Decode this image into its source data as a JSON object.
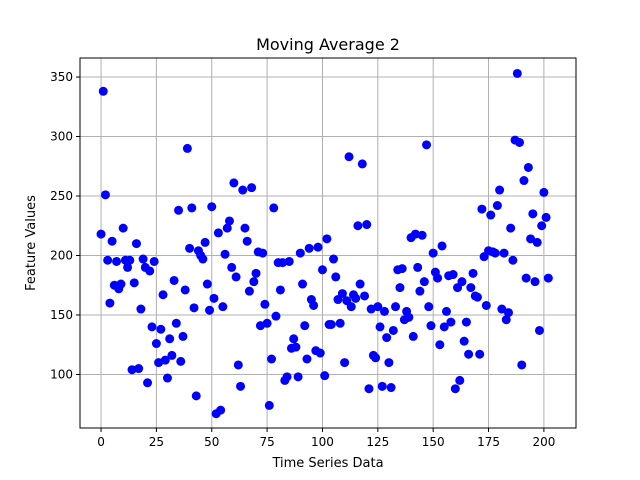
{
  "chart_data": {
    "type": "scatter",
    "title": "Moving Average 2",
    "xlabel": "Time Series Data",
    "ylabel": "Feature Values",
    "xlim": [
      -9.5,
      214.5
    ],
    "ylim": [
      55,
      366
    ],
    "xticks": [
      0,
      25,
      50,
      75,
      100,
      125,
      150,
      175,
      200
    ],
    "yticks": [
      100,
      150,
      200,
      250,
      300,
      350
    ],
    "grid": true,
    "marker_color": "#0000ff",
    "points": [
      [
        0,
        218
      ],
      [
        1,
        338
      ],
      [
        2,
        251
      ],
      [
        3,
        196
      ],
      [
        4,
        160
      ],
      [
        5,
        212
      ],
      [
        6,
        175
      ],
      [
        7,
        195
      ],
      [
        8,
        172
      ],
      [
        9,
        176
      ],
      [
        10,
        223
      ],
      [
        11,
        196
      ],
      [
        12,
        190
      ],
      [
        13,
        196
      ],
      [
        14,
        104
      ],
      [
        15,
        177
      ],
      [
        16,
        210
      ],
      [
        17,
        105
      ],
      [
        18,
        155
      ],
      [
        19,
        197
      ],
      [
        20,
        190
      ],
      [
        21,
        93
      ],
      [
        22,
        187
      ],
      [
        23,
        140
      ],
      [
        24,
        195
      ],
      [
        25,
        126
      ],
      [
        26,
        110
      ],
      [
        27,
        138
      ],
      [
        28,
        167
      ],
      [
        29,
        112
      ],
      [
        30,
        97
      ],
      [
        31,
        130
      ],
      [
        32,
        116
      ],
      [
        33,
        179
      ],
      [
        34,
        143
      ],
      [
        35,
        238
      ],
      [
        36,
        111
      ],
      [
        37,
        132
      ],
      [
        38,
        171
      ],
      [
        39,
        290
      ],
      [
        40,
        206
      ],
      [
        41,
        240
      ],
      [
        42,
        156
      ],
      [
        43,
        82
      ],
      [
        44,
        204
      ],
      [
        45,
        200
      ],
      [
        46,
        197
      ],
      [
        47,
        211
      ],
      [
        48,
        176
      ],
      [
        49,
        154
      ],
      [
        50,
        241
      ],
      [
        51,
        164
      ],
      [
        52,
        67
      ],
      [
        53,
        219
      ],
      [
        54,
        70
      ],
      [
        55,
        157
      ],
      [
        56,
        201
      ],
      [
        57,
        223
      ],
      [
        58,
        229
      ],
      [
        59,
        190
      ],
      [
        60,
        261
      ],
      [
        61,
        182
      ],
      [
        62,
        108
      ],
      [
        63,
        90
      ],
      [
        64,
        255
      ],
      [
        65,
        223
      ],
      [
        66,
        212
      ],
      [
        67,
        170
      ],
      [
        68,
        257
      ],
      [
        69,
        178
      ],
      [
        70,
        185
      ],
      [
        71,
        203
      ],
      [
        72,
        141
      ],
      [
        73,
        202
      ],
      [
        74,
        159
      ],
      [
        75,
        143
      ],
      [
        76,
        74
      ],
      [
        77,
        113
      ],
      [
        78,
        240
      ],
      [
        79,
        149
      ],
      [
        80,
        194
      ],
      [
        81,
        171
      ],
      [
        82,
        194
      ],
      [
        83,
        95
      ],
      [
        84,
        98
      ],
      [
        85,
        195
      ],
      [
        86,
        122
      ],
      [
        87,
        130
      ],
      [
        88,
        123
      ],
      [
        89,
        98
      ],
      [
        90,
        202
      ],
      [
        91,
        176
      ],
      [
        92,
        141
      ],
      [
        93,
        113
      ],
      [
        94,
        206
      ],
      [
        95,
        163
      ],
      [
        96,
        158
      ],
      [
        97,
        120
      ],
      [
        98,
        207
      ],
      [
        99,
        118
      ],
      [
        100,
        188
      ],
      [
        101,
        99
      ],
      [
        102,
        214
      ],
      [
        103,
        142
      ],
      [
        104,
        142
      ],
      [
        105,
        197
      ],
      [
        106,
        182
      ],
      [
        107,
        163
      ],
      [
        108,
        143
      ],
      [
        109,
        168
      ],
      [
        110,
        110
      ],
      [
        111,
        162
      ],
      [
        112,
        283
      ],
      [
        113,
        157
      ],
      [
        114,
        167
      ],
      [
        115,
        164
      ],
      [
        116,
        225
      ],
      [
        117,
        176
      ],
      [
        118,
        277
      ],
      [
        119,
        166
      ],
      [
        120,
        226
      ],
      [
        121,
        88
      ],
      [
        122,
        155
      ],
      [
        123,
        116
      ],
      [
        124,
        114
      ],
      [
        125,
        157
      ],
      [
        126,
        140
      ],
      [
        127,
        90
      ],
      [
        128,
        153
      ],
      [
        129,
        131
      ],
      [
        130,
        110
      ],
      [
        131,
        89
      ],
      [
        132,
        137
      ],
      [
        133,
        157
      ],
      [
        134,
        188
      ],
      [
        135,
        173
      ],
      [
        136,
        189
      ],
      [
        137,
        146
      ],
      [
        138,
        153
      ],
      [
        139,
        148
      ],
      [
        140,
        215
      ],
      [
        141,
        132
      ],
      [
        142,
        218
      ],
      [
        143,
        190
      ],
      [
        144,
        170
      ],
      [
        145,
        217
      ],
      [
        146,
        178
      ],
      [
        147,
        293
      ],
      [
        148,
        157
      ],
      [
        149,
        141
      ],
      [
        150,
        202
      ],
      [
        151,
        186
      ],
      [
        152,
        181
      ],
      [
        153,
        125
      ],
      [
        154,
        208
      ],
      [
        155,
        140
      ],
      [
        156,
        153
      ],
      [
        157,
        183
      ],
      [
        158,
        144
      ],
      [
        159,
        184
      ],
      [
        160,
        88
      ],
      [
        161,
        173
      ],
      [
        162,
        95
      ],
      [
        163,
        178
      ],
      [
        164,
        128
      ],
      [
        165,
        144
      ],
      [
        166,
        117
      ],
      [
        167,
        173
      ],
      [
        168,
        185
      ],
      [
        169,
        166
      ],
      [
        170,
        165
      ],
      [
        171,
        117
      ],
      [
        172,
        239
      ],
      [
        173,
        199
      ],
      [
        174,
        158
      ],
      [
        175,
        204
      ],
      [
        176,
        234
      ],
      [
        177,
        203
      ],
      [
        178,
        202
      ],
      [
        179,
        242
      ],
      [
        180,
        255
      ],
      [
        181,
        155
      ],
      [
        182,
        202
      ],
      [
        183,
        146
      ],
      [
        184,
        152
      ],
      [
        185,
        223
      ],
      [
        186,
        196
      ],
      [
        187,
        297
      ],
      [
        188,
        353
      ],
      [
        189,
        295
      ],
      [
        190,
        108
      ],
      [
        191,
        263
      ],
      [
        192,
        181
      ],
      [
        193,
        274
      ],
      [
        194,
        214
      ],
      [
        195,
        235
      ],
      [
        196,
        178
      ],
      [
        197,
        211
      ],
      [
        198,
        137
      ],
      [
        199,
        225
      ],
      [
        200,
        253
      ],
      [
        201,
        232
      ],
      [
        202,
        181
      ]
    ]
  }
}
